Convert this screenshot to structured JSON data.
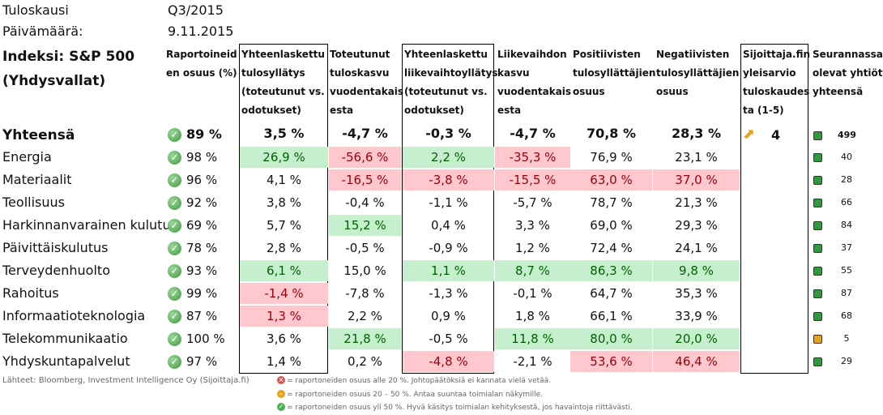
{
  "meta": {
    "period_label": "Tuloskausi",
    "period_value": "Q3/2015",
    "date_label": "Päivämäärä:",
    "date_value": "9.11.2015"
  },
  "index_title": "Indeksi: S&P 500\n(Yhdysvallat)",
  "headers": [
    "Raportoineid\nen osuus (%)",
    "Yhteenlaskettu\ntulosyllätys\n(toteutunut vs.\nodotukset)",
    "Toteutunut\ntuloskasvu\nvuodentakais\nesta",
    "Yhteenlaskettu\nliikevaihtoyllätys\n(toteutunut vs.\nodotukset)",
    "Liikevaihdon\nkasvu\nvuodentakais\nesta",
    "Positiivisten\ntulosyllättäjien\nosuus",
    "Negatiivisten\ntulosyllättäjien\nosuus",
    "Sijoittaja.fin\nyleisarvio\ntuloskaudes\nta (1-5)",
    "Seurannassa\nolevat yhtiöt\nyhteensä"
  ],
  "colors": {
    "green_fill": "#c6efce",
    "red_fill": "#ffc7ce",
    "green_text": "#006100",
    "red_text": "#9c0006"
  },
  "total": {
    "label": "Yhteensä",
    "reported": "89 %",
    "values": [
      "3,5 %",
      "-4,7 %",
      "-0,3 %",
      "-4,7 %",
      "70,8 %",
      "28,3 %"
    ],
    "rating": "4",
    "rating_icon": "arrow-up-right-icon",
    "count": "499"
  },
  "rows": [
    {
      "label": "Energia",
      "reported": "98 %",
      "values": [
        "26,9 %",
        "-56,6 %",
        "2,2 %",
        "-35,3 %",
        "76,9 %",
        "23,1 %"
      ],
      "status": [
        "g",
        "r",
        "g",
        "r",
        "",
        ""
      ],
      "count": "40",
      "dot": "green"
    },
    {
      "label": "Materiaalit",
      "reported": "96 %",
      "values": [
        "4,1 %",
        "-16,5 %",
        "-3,8 %",
        "-15,5 %",
        "63,0 %",
        "37,0 %"
      ],
      "status": [
        "",
        "r",
        "r",
        "r",
        "r",
        "r"
      ],
      "count": "28",
      "dot": "green"
    },
    {
      "label": "Teollisuus",
      "reported": "92 %",
      "values": [
        "3,8 %",
        "-0,4 %",
        "-1,1 %",
        "-5,7 %",
        "78,7 %",
        "21,3 %"
      ],
      "status": [
        "",
        "",
        "",
        "",
        "",
        ""
      ],
      "count": "66",
      "dot": "green"
    },
    {
      "label": "Harkinnanvarainen kulutus",
      "reported": "69 %",
      "values": [
        "5,7 %",
        "15,2 %",
        "0,4 %",
        "3,3 %",
        "69,0 %",
        "29,3 %"
      ],
      "status": [
        "",
        "g",
        "",
        "",
        "",
        ""
      ],
      "count": "84",
      "dot": "green"
    },
    {
      "label": "Päivittäiskulutus",
      "reported": "78 %",
      "values": [
        "2,8 %",
        "-0,5 %",
        "-0,9 %",
        "1,2 %",
        "72,4 %",
        "24,1 %"
      ],
      "status": [
        "",
        "",
        "",
        "",
        "",
        ""
      ],
      "count": "37",
      "dot": "green"
    },
    {
      "label": "Terveydenhuolto",
      "reported": "93 %",
      "values": [
        "6,1 %",
        "15,0 %",
        "1,1 %",
        "8,7 %",
        "86,3 %",
        "9,8 %"
      ],
      "status": [
        "g",
        "",
        "g",
        "g",
        "g",
        "g"
      ],
      "count": "55",
      "dot": "green"
    },
    {
      "label": "Rahoitus",
      "reported": "99 %",
      "values": [
        "-1,4 %",
        "-7,8 %",
        "-1,3 %",
        "-0,1 %",
        "64,7 %",
        "35,3 %"
      ],
      "status": [
        "r",
        "",
        "",
        "",
        "",
        ""
      ],
      "count": "87",
      "dot": "green"
    },
    {
      "label": "Informaatioteknologia",
      "reported": "87 %",
      "values": [
        "1,3 %",
        "2,2 %",
        "0,9 %",
        "1,8 %",
        "66,1 %",
        "33,9 %"
      ],
      "status": [
        "r",
        "",
        "",
        "",
        "",
        ""
      ],
      "count": "68",
      "dot": "green"
    },
    {
      "label": "Telekommunikaatio",
      "reported": "100 %",
      "values": [
        "3,6 %",
        "21,8 %",
        "-0,5 %",
        "11,8 %",
        "80,0 %",
        "20,0 %"
      ],
      "status": [
        "",
        "g",
        "",
        "g",
        "g",
        "g"
      ],
      "count": "5",
      "dot": "amber"
    },
    {
      "label": "Yhdyskuntapalvelut",
      "reported": "97 %",
      "values": [
        "1,4 %",
        "0,2 %",
        "-4,8 %",
        "-2,1 %",
        "53,6 %",
        "46,4 %"
      ],
      "status": [
        "",
        "",
        "r",
        "",
        "r",
        "r"
      ],
      "count": "29",
      "dot": "green"
    }
  ],
  "footer": {
    "source": "Lähteet: Bloomberg, Investment Intelligence Oy (Sijoittaja.fi)",
    "legend": [
      {
        "icon": "red-x-icon",
        "text": "= raportoneiden osuus alle 20 %. Johtopäätöksiä ei kannata vielä vetää."
      },
      {
        "icon": "amber-minus-icon",
        "text": "= raportoneiden osuus 20 – 50 %. Antaa suuntaa toimialan näkymille."
      },
      {
        "icon": "green-check-icon",
        "text": "= raportoneiden osuus yli 50 %. Hyvä käsitys toimialan kehityksestä, jos havaintoja riittävästi."
      }
    ]
  }
}
